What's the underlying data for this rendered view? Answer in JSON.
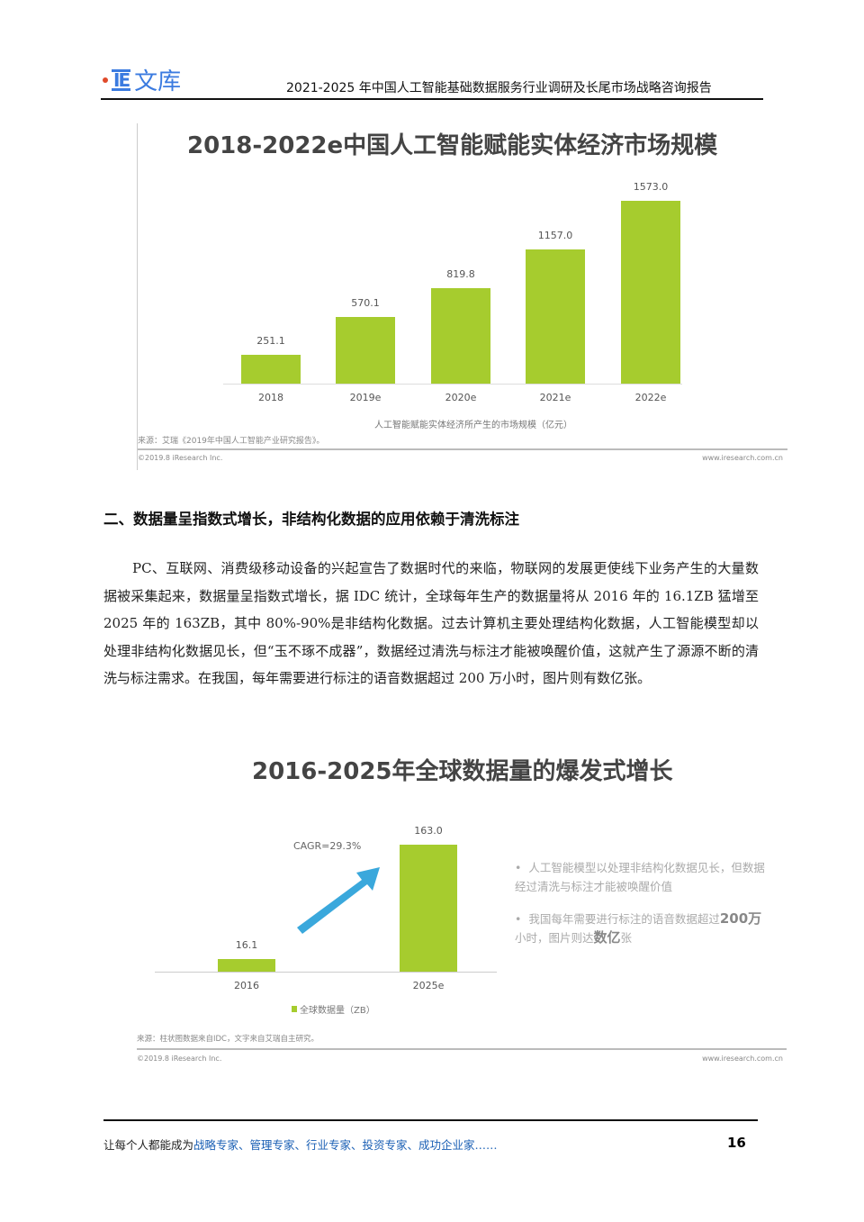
{
  "header": {
    "logo_text": "文库",
    "logo_letters": "IE",
    "title": "2021-2025 年中国人工智能基础数据服务行业调研及长尾市场战略咨询报告"
  },
  "chart_data": [
    {
      "type": "bar",
      "title": "2018-2022e中国人工智能赋能实体经济市场规模",
      "categories": [
        "2018",
        "2019e",
        "2020e",
        "2021e",
        "2022e"
      ],
      "values": [
        251.1,
        570.1,
        819.8,
        1157.0,
        1573.0
      ],
      "value_labels": [
        "251.1",
        "570.1",
        "819.8",
        "1157.0",
        "1573.0"
      ],
      "xlabel": "人工智能赋能实体经济所产生的市场规模（亿元）",
      "ylim": [
        0,
        1573.0
      ],
      "color": "#a6cc2e",
      "source": "来源：艾瑞《2019年中国人工智能产业研究报告》。",
      "copyright": "©2019.8 iResearch Inc.",
      "site": "www.iresearch.com.cn"
    },
    {
      "type": "bar",
      "title": "2016-2025年全球数据量的爆发式增长",
      "categories": [
        "2016",
        "2025e"
      ],
      "values": [
        16.1,
        163.0
      ],
      "value_labels": [
        "16.1",
        "163.0"
      ],
      "legend": "全球数据量（ZB）",
      "annotation": "CAGR=29.3%",
      "ylim": [
        0,
        163.0
      ],
      "color": "#a6cc2e",
      "bullets": [
        {
          "text": "人工智能模型以处理非结构化数据见长，但数据经过清洗与标注才能被唤醒价值",
          "bold": ""
        },
        {
          "text": "我国每年需要进行标注的语音数据超过",
          "bold": "200万",
          "text2": "小时，图片则达",
          "bold2": "数亿",
          "text3": "张"
        }
      ],
      "source": "来源：柱状图数据来自IDC，文字来自艾瑞自主研究。",
      "copyright": "©2019.8 iResearch Inc.",
      "site": "www.iresearch.com.cn"
    }
  ],
  "section": {
    "heading": "二、数据量呈指数式增长，非结构化数据的应用依赖于清洗标注",
    "paragraph": "PC、互联网、消费级移动设备的兴起宣告了数据时代的来临，物联网的发展更使线下业务产生的大量数据被采集起来，数据量呈指数式增长，据 IDC 统计，全球每年生产的数据量将从 2016 年的 16.1ZB 猛增至 2025 年的 163ZB，其中 80%-90%是非结构化数据。过去计算机主要处理结构化数据，人工智能模型却以处理非结构化数据见长，但“玉不琢不成器”，数据经过清洗与标注才能被唤醒价值，这就产生了源源不断的清洗与标注需求。在我国，每年需要进行标注的语音数据超过 200 万小时，图片则有数亿张。"
  },
  "footer": {
    "prefix": "让每个人都能成为",
    "roles": "战略专家、管理专家、行业专家、投资专家、成功企业家……",
    "page": "16"
  }
}
